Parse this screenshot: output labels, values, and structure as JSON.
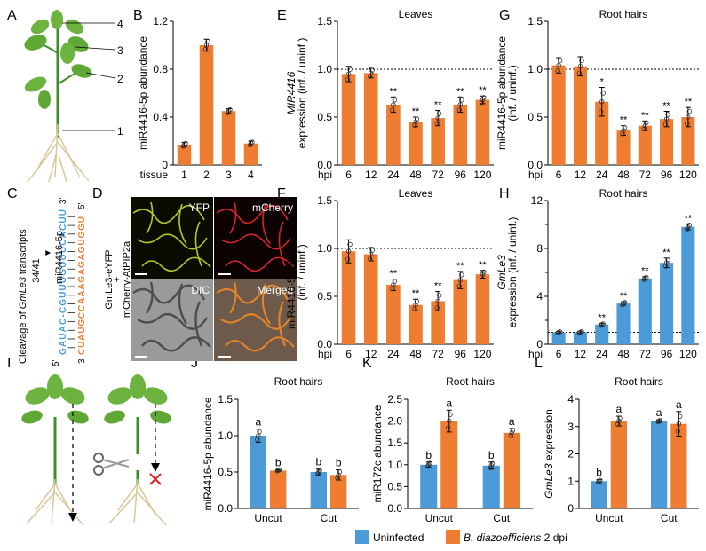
{
  "colors": {
    "orange": "#EE7D31",
    "blue": "#4A9BD8",
    "stem": "#3E8E27",
    "leaf": "#6CB33F",
    "root": "#D9C79A"
  },
  "panel_letters": {
    "A": "A",
    "B": "B",
    "C": "C",
    "D": "D",
    "E": "E",
    "F": "F",
    "G": "G",
    "H": "H",
    "I": "I",
    "J": "J",
    "K": "K",
    "L": "L"
  },
  "panel_A": {
    "labels": [
      "4",
      "3",
      "2",
      "1"
    ]
  },
  "panel_C": {
    "title_prefix": "Cleavage of ",
    "title_gene": "GmLe3",
    "title_suffix": " transcripts",
    "count": "34/41",
    "arrow": "▼",
    "target_strand": "GAUAC-CGUUUGUUUCACUU",
    "target_end_5": "5'",
    "target_end_3": "3'",
    "mirna_strand": "CUAUGCCAAAGAGAGUGGU",
    "mirna_end_3": "3'",
    "mirna_end_5": "5'",
    "mirna_label": "miR4416-5p",
    "pairs": "| | | | | | | | | | | | | | | |"
  },
  "panel_D": {
    "side_label_1": "GmLe3-eYFP",
    "side_label_2": "+",
    "side_label_3": "mCherry-AtPIP2a",
    "tiles": [
      "YFP",
      "mCherry",
      "DIC",
      "Merged"
    ]
  },
  "panel_I": {
    "cut_icon": "scissors-icon",
    "blocked_icon": "cross-icon"
  },
  "legend": {
    "uninfected": "Uninfected",
    "infected": "B. diazoefficiens",
    "dpi": "2 dpi"
  },
  "chart_data": [
    {
      "id": "B",
      "type": "bar",
      "title": "",
      "xlabel": "tissue",
      "ylabel": "miR4416-5p abundance",
      "categories": [
        "1",
        "2",
        "3",
        "4"
      ],
      "values": [
        0.17,
        1.0,
        0.45,
        0.18
      ],
      "errors": [
        0.02,
        0.05,
        0.02,
        0.02
      ],
      "ylim": [
        0,
        1.2
      ],
      "yticks": [
        "0",
        "0.4",
        "0.8",
        "1.2"
      ]
    },
    {
      "id": "E",
      "type": "bar",
      "title": "Leaves",
      "xlabel": "hpi",
      "ylabel_italic": "MIR4416",
      "ylabel": "expression (inf. / uninf.)",
      "categories": [
        "6",
        "12",
        "24",
        "48",
        "72",
        "96",
        "120"
      ],
      "values": [
        0.95,
        0.96,
        0.63,
        0.45,
        0.49,
        0.63,
        0.68
      ],
      "errors": [
        0.08,
        0.05,
        0.08,
        0.05,
        0.08,
        0.08,
        0.04
      ],
      "significance": [
        "",
        "",
        "**",
        "**",
        "**",
        "**",
        "**"
      ],
      "ylim": [
        0,
        1.5
      ],
      "yticks": [
        "0.0",
        "0.5",
        "1.0",
        "1.5"
      ],
      "reference_line": 1.0
    },
    {
      "id": "G",
      "type": "bar",
      "title": "Root hairs",
      "xlabel": "hpi",
      "ylabel": "miR4416-5p abundance (inf. / uninf.)",
      "categories": [
        "6",
        "12",
        "24",
        "48",
        "72",
        "96",
        "120"
      ],
      "values": [
        1.04,
        1.03,
        0.66,
        0.36,
        0.41,
        0.48,
        0.5
      ],
      "errors": [
        0.08,
        0.1,
        0.15,
        0.05,
        0.05,
        0.08,
        0.1
      ],
      "significance": [
        "",
        "",
        "*",
        "**",
        "**",
        "**",
        "**"
      ],
      "ylim": [
        0,
        1.5
      ],
      "yticks": [
        "0.0",
        "0.5",
        "1.0",
        "1.5"
      ],
      "reference_line": 1.0
    },
    {
      "id": "F",
      "type": "bar",
      "title": "Leaves",
      "xlabel": "hpi",
      "ylabel": "miR4416-5p abundance (inf. / uninf.)",
      "categories": [
        "6",
        "12",
        "24",
        "48",
        "72",
        "96",
        "120"
      ],
      "values": [
        0.97,
        0.94,
        0.62,
        0.41,
        0.45,
        0.67,
        0.73
      ],
      "errors": [
        0.12,
        0.07,
        0.06,
        0.06,
        0.1,
        0.09,
        0.04
      ],
      "significance": [
        "",
        "",
        "**",
        "**",
        "**",
        "**",
        "**"
      ],
      "ylim": [
        0,
        1.5
      ],
      "yticks": [
        "0.0",
        "0.5",
        "1.0",
        "1.5"
      ],
      "reference_line": 1.0
    },
    {
      "id": "H",
      "type": "bar",
      "title": "Root hairs",
      "xlabel": "hpi",
      "ylabel_italic": "GmLe3",
      "ylabel": "expression (inf. / uninf.)",
      "categories": [
        "6",
        "12",
        "24",
        "48",
        "72",
        "96",
        "120"
      ],
      "values": [
        1.0,
        1.0,
        1.65,
        3.4,
        5.5,
        6.8,
        9.8
      ],
      "errors": [
        0.08,
        0.1,
        0.1,
        0.15,
        0.15,
        0.4,
        0.25
      ],
      "significance": [
        "",
        "",
        "**",
        "**",
        "**",
        "**",
        "**"
      ],
      "ylim": [
        0,
        12
      ],
      "yticks": [
        "0",
        "4",
        "8",
        "12"
      ],
      "extra_yticks": [
        "2",
        "6",
        "10"
      ],
      "reference_line": 1.0
    },
    {
      "id": "J",
      "type": "bar",
      "title": "Root hairs",
      "ylabel": "miR4416-5p abundance",
      "categories": [
        "Uncut",
        "Cut"
      ],
      "series": [
        {
          "name": "Uninfected",
          "values": [
            1.0,
            0.5
          ],
          "errors": [
            0.09,
            0.04
          ],
          "letters": [
            "a",
            "b"
          ]
        },
        {
          "name": "B. diazoefficiens 2 dpi",
          "values": [
            0.52,
            0.46
          ],
          "errors": [
            0.01,
            0.07
          ],
          "letters": [
            "b",
            "b"
          ]
        }
      ],
      "ylim": [
        0,
        1.5
      ],
      "yticks": [
        "0.0",
        "0.5",
        "1.0",
        "1.5"
      ]
    },
    {
      "id": "K",
      "type": "bar",
      "title": "Root hairs",
      "ylabel": "miR172c abundance",
      "categories": [
        "Uncut",
        "Cut"
      ],
      "series": [
        {
          "name": "Uninfected",
          "values": [
            1.0,
            0.98
          ],
          "errors": [
            0.06,
            0.08
          ],
          "letters": [
            "b",
            "b"
          ]
        },
        {
          "name": "B. diazoefficiens 2 dpi",
          "values": [
            2.0,
            1.73
          ],
          "errors": [
            0.25,
            0.1
          ],
          "letters": [
            "a",
            "a"
          ]
        }
      ],
      "ylim": [
        0,
        2.5
      ],
      "yticks": [
        "0.0",
        "0.5",
        "1.0",
        "1.5",
        "2.0",
        "2.5"
      ]
    },
    {
      "id": "L",
      "type": "bar",
      "title": "Root hairs",
      "ylabel_italic": "GmLe3",
      "ylabel": "expression",
      "categories": [
        "Uncut",
        "Cut"
      ],
      "series": [
        {
          "name": "Uninfected",
          "values": [
            1.0,
            3.2
          ],
          "errors": [
            0.06,
            0.05
          ],
          "letters": [
            "b",
            "a"
          ]
        },
        {
          "name": "B. diazoefficiens 2 dpi",
          "values": [
            3.2,
            3.1
          ],
          "errors": [
            0.18,
            0.45
          ],
          "letters": [
            "a",
            "a"
          ]
        }
      ],
      "ylim": [
        0,
        4
      ],
      "yticks": [
        "0",
        "1",
        "2",
        "3",
        "4"
      ]
    }
  ]
}
